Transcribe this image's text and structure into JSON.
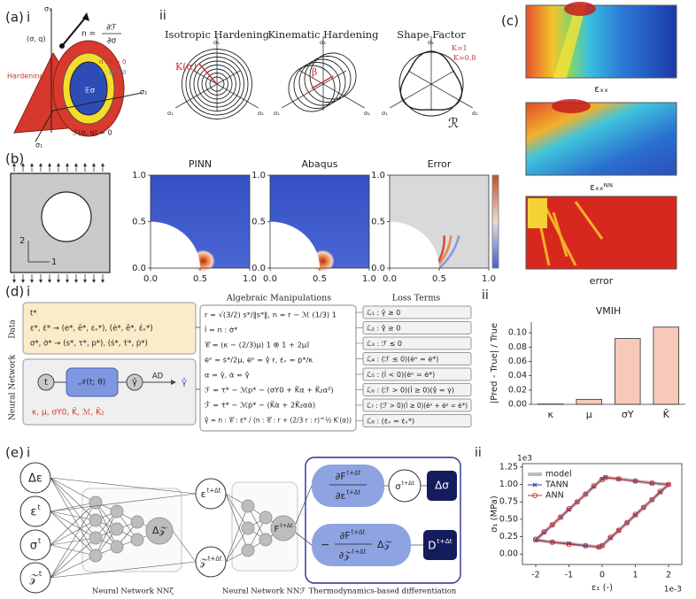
{
  "labels": {
    "a": "(a)",
    "b": "(b)",
    "c": "(c)",
    "d": "(d)",
    "e": "(e)",
    "i": "i",
    "ii": "ii"
  },
  "cone": {
    "sigma3": "σ₃",
    "sigma2": "σ₂",
    "sigma1": "σ₁",
    "point": "(σ, q)",
    "normal_lhs": "n =",
    "normal_num": "∂ℱ",
    "normal_den": "∂σ",
    "hardening": "Hardening",
    "load": "n : σ̇ > 0",
    "unload": "n : σ̇ < 0",
    "elastic": "𝔼σ",
    "surface": "ℱ(σ, q) = 0"
  },
  "hardening": {
    "axes": [
      "σ₁",
      "σ₂",
      "σ₃"
    ],
    "isotropic": {
      "title": "Isotropic Hardening",
      "label": "K(α)"
    },
    "kinematic": {
      "title": "Kinematic Hardening",
      "label": "β"
    },
    "shape": {
      "title": "Shape Factor",
      "k1": "K=1",
      "k2": "K=0.8",
      "curve": "ℛ"
    }
  },
  "fields": [
    "εₓₓ",
    "εₓₓᴺᴺ",
    "error"
  ],
  "plate": {
    "axis2": "2",
    "axis1": "1"
  },
  "pipeline": {
    "side_data": "Data",
    "side_nn": "Neural Network",
    "data_lines": [
      "t*",
      "ε*, ε̇* → (e*, ē*, εᵥ*), (ė*, ē̇*, ε̇ᵥ*)",
      "σ*, σ̇* → (s*, τ*, p*), (ṡ*, τ̇*, ṗ*)"
    ],
    "nn": {
      "input": "t",
      "network": "𝒩(t; θ)",
      "output": "γ̂",
      "ad": "AD",
      "rate": "γ̂̇",
      "params": "κ, μ, σY0, K̄, ℳ, K̄₂"
    },
    "algebra_title": "Algebraic Manipulations",
    "algebra": [
      "r = √(3/2) s*/‖s*‖,   n = r − ℳ (1/3) 1",
      "l̇ = n : σ̇*",
      "𝒞 = (κ − (2/3)μ) 1 ⊗ 1 + 2μ𝕀",
      "ėᵉ = ṡ*/2μ,   ėᵖ = γ̂̇ r,   ε̇ᵥ = ṗ*/κ",
      "α = γ̂,   α̇ = γ̂̇",
      "ℱ = τ* − ℳp* − (σY0 + K̄α + K̄₂α²)",
      "ℱ̇ = τ̇* − ℳṗ* − (K̄α̇ + 2K̄₂αα̇)",
      "γ̂̇ = n : 𝒞 : ε̇* / (n : 𝒞 : r + (2/3 r : r)^½ K′(α))"
    ],
    "loss_title": "Loss Terms",
    "loss": [
      "ℒ₁ : γ̂ ≥ 0",
      "ℒ₂ : γ̂̇ ≥ 0",
      "ℒ₃ : ℱ ≤ 0",
      "ℒ₄ : (ℱ ≤ 0)(ėᵉ = ė*)",
      "ℒ₅ : (l̇ < 0)(ėᵉ = ė*)",
      "ℒ₆ : (ℱ > 0)(l̇ ≥ 0)(γ̂̇ = γ̇)",
      "ℒ₇ : (ℱ > 0)(l̇ ≥ 0)(ėᵉ + ėᵖ = ė*)",
      "ℒ₈ : (ε̇ᵥ = ε̇ᵥ*)"
    ]
  },
  "network": {
    "inputs": [
      {
        "base": "Δε"
      },
      {
        "base": "ε",
        "sup": "t"
      },
      {
        "base": "σ",
        "sup": "t"
      },
      {
        "base": "𝒵",
        "sup": "t"
      }
    ],
    "dz": "Δ𝒵",
    "eps_next": {
      "base": "ε",
      "sup": "t+Δt"
    },
    "z_next": {
      "base": "𝒵",
      "sup": "t+Δt"
    },
    "F": {
      "base": "F",
      "sup": "t+Δt"
    },
    "dF_de": {
      "num": {
        "base": "∂F",
        "sup": "t+Δt"
      },
      "den": {
        "base": "∂ε",
        "sup": "t+Δt"
      }
    },
    "sigma_next": {
      "base": "σ",
      "sup": "t+Δt"
    },
    "dsigma": "Δσ",
    "dF_dz": {
      "minus": "−",
      "num": {
        "base": "∂F",
        "sup": "t+Δt"
      },
      "den": {
        "base": "∂𝒵",
        "sup": "t+Δt"
      },
      "dz": "Δ𝒵"
    },
    "D": {
      "base": "D",
      "sup": "t+Δt"
    },
    "captions": [
      "Neural Network NNζ",
      "Neural Network NNℱ",
      "Thermodynamics-based differentiation"
    ]
  },
  "chart_data": [
    {
      "type": "field",
      "title": "PINN",
      "xlim": [
        0,
        1
      ],
      "ylim": [
        0,
        1
      ],
      "xticks": [
        {
          "value": 0,
          "label": "0.0"
        },
        {
          "value": 0.5,
          "label": "0.5"
        },
        {
          "value": 1,
          "label": "1.0"
        }
      ],
      "yticks": [
        {
          "value": 0,
          "label": "0.0"
        },
        {
          "value": 0.5,
          "label": "0.5"
        },
        {
          "value": 1,
          "label": "1.0"
        }
      ]
    },
    {
      "type": "field",
      "title": "Abaqus",
      "xlim": [
        0,
        1
      ],
      "ylim": [
        0,
        1
      ],
      "xticks": [
        {
          "value": 0,
          "label": "0.0"
        },
        {
          "value": 0.5,
          "label": "0.5"
        },
        {
          "value": 1,
          "label": "1.0"
        }
      ],
      "yticks": [
        {
          "value": 0,
          "label": "0.0"
        },
        {
          "value": 0.5,
          "label": "0.5"
        },
        {
          "value": 1,
          "label": "1.0"
        }
      ]
    },
    {
      "type": "field",
      "title": "Error",
      "xlim": [
        0,
        1
      ],
      "ylim": [
        0,
        1
      ],
      "xticks": [
        {
          "value": 0,
          "label": "0.0"
        },
        {
          "value": 0.5,
          "label": "0.5"
        },
        {
          "value": 1,
          "label": "1.0"
        }
      ],
      "yticks": [
        {
          "value": 0,
          "label": "0.0"
        },
        {
          "value": 0.5,
          "label": "0.5"
        },
        {
          "value": 1,
          "label": "1.0"
        }
      ]
    },
    {
      "type": "bar",
      "title": "VMIH",
      "ylabel": "|Pred - True| / True",
      "categories": [
        "κ",
        "μ",
        "σY",
        "K̄"
      ],
      "values": [
        0.0005,
        0.007,
        0.092,
        0.108
      ],
      "color": "#f6c9b8",
      "ylim": [
        0,
        0.115
      ],
      "yticks": [
        {
          "value": 0,
          "label": "0.00"
        },
        {
          "value": 0.02,
          "label": "0.02"
        },
        {
          "value": 0.04,
          "label": "0.04"
        },
        {
          "value": 0.06,
          "label": "0.06"
        },
        {
          "value": 0.08,
          "label": "0.08"
        },
        {
          "value": 0.1,
          "label": "0.10"
        }
      ]
    },
    {
      "type": "line",
      "xlabel": "ε₁ (-)",
      "ylabel": "σ₁ (MPa)",
      "x_scale_label": "1e-3",
      "y_scale_label": "1e3",
      "xlim": [
        -2.4,
        2.4
      ],
      "ylim": [
        -0.15,
        1.3
      ],
      "legend": "upper left",
      "xticks": [
        -2,
        -1,
        0,
        1,
        2
      ],
      "yticks": [
        {
          "value": 0,
          "label": "0.00"
        },
        {
          "value": 0.25,
          "label": "0.25"
        },
        {
          "value": 0.5,
          "label": "0.50"
        },
        {
          "value": 0.75,
          "label": "0.75"
        },
        {
          "value": 1,
          "label": "1.00"
        },
        {
          "value": 1.25,
          "label": "1.25"
        }
      ],
      "x": [
        -2,
        -1.75,
        -1.5,
        -1.25,
        -1,
        -0.75,
        -0.5,
        -0.25,
        0,
        0.1,
        0.5,
        1,
        1.5,
        2,
        1.75,
        1.5,
        1.25,
        1,
        0.75,
        0.5,
        0.25,
        0,
        -0.1,
        -0.5,
        -1,
        -1.5,
        -2
      ],
      "series": [
        {
          "name": "model",
          "color": "#bdbdbd",
          "marker": "none",
          "linewidth": 4,
          "values": [
            0.2,
            0.31,
            0.42,
            0.53,
            0.64,
            0.75,
            0.86,
            0.97,
            1.08,
            1.1,
            1.08,
            1.05,
            1.02,
            1.0,
            0.89,
            0.78,
            0.67,
            0.56,
            0.45,
            0.34,
            0.23,
            0.12,
            0.1,
            0.12,
            0.15,
            0.17,
            0.2
          ]
        },
        {
          "name": "TANN",
          "color": "#2a3fa8",
          "marker": "x",
          "linewidth": 1,
          "values": [
            0.2,
            0.31,
            0.42,
            0.53,
            0.64,
            0.75,
            0.86,
            0.97,
            1.08,
            1.1,
            1.08,
            1.05,
            1.02,
            1.0,
            0.89,
            0.78,
            0.67,
            0.56,
            0.45,
            0.34,
            0.23,
            0.12,
            0.1,
            0.12,
            0.15,
            0.17,
            0.2
          ]
        },
        {
          "name": "ANN",
          "color": "#d32f2f",
          "marker": "o",
          "linewidth": 1,
          "values": [
            0.21,
            0.32,
            0.42,
            0.53,
            0.65,
            0.75,
            0.86,
            0.98,
            1.07,
            1.1,
            1.08,
            1.05,
            1.02,
            1.0,
            0.9,
            0.78,
            0.67,
            0.57,
            0.45,
            0.34,
            0.24,
            0.12,
            0.1,
            0.12,
            0.14,
            0.17,
            0.21
          ]
        }
      ]
    }
  ]
}
